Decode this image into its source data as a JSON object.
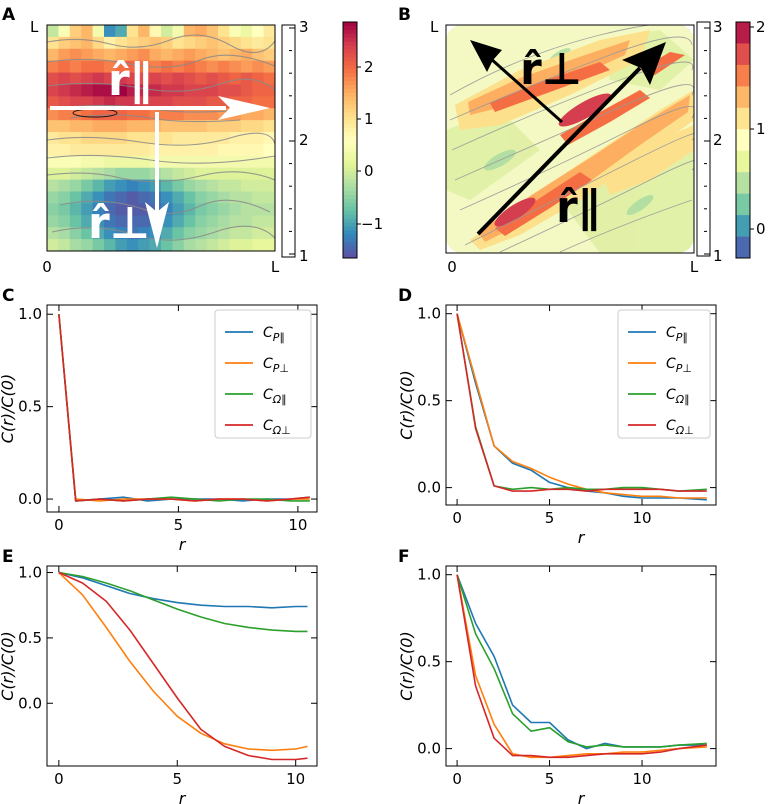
{
  "chart_data": [
    {
      "panel": "A",
      "type": "heatmap",
      "x_tick_labels": [
        "0",
        "L"
      ],
      "y_tick_labels": [
        "L"
      ],
      "arrow_labels": {
        "parallel": "r̂∥",
        "perp": "r̂⊥"
      },
      "rows": [
        [
          -0.2,
          0.4,
          1.1,
          1.3,
          0.3,
          -1.2,
          -1.0,
          0.9,
          1.3,
          0.6,
          -0.1,
          0.3,
          1.3,
          1.4,
          1.2,
          0.9,
          0.4,
          0.2,
          0.5,
          0.8
        ],
        [
          0.9,
          1.1,
          1.2,
          1.3,
          1.0,
          0.7,
          0.9,
          1.0,
          1.1,
          1.2,
          1.1,
          0.9,
          1.0,
          1.1,
          1.2,
          1.1,
          1.0,
          0.9,
          0.8,
          0.9
        ],
        [
          1.3,
          1.5,
          1.6,
          1.5,
          1.4,
          1.3,
          1.4,
          1.5,
          1.6,
          1.4,
          1.3,
          1.4,
          1.5,
          1.4,
          1.3,
          1.2,
          1.3,
          1.4,
          1.2,
          1.1
        ],
        [
          1.7,
          1.8,
          1.7,
          1.8,
          1.8,
          1.7,
          1.8,
          1.9,
          1.8,
          1.7,
          1.8,
          1.7,
          1.8,
          1.7,
          1.6,
          1.7,
          1.6,
          1.5,
          1.6,
          1.5
        ],
        [
          2.1,
          2.2,
          2.1,
          2.2,
          2.3,
          2.2,
          2.3,
          2.2,
          2.1,
          2.2,
          2.1,
          2.2,
          2.1,
          2.0,
          2.1,
          2.0,
          1.9,
          2.0,
          1.9,
          1.8
        ],
        [
          2.2,
          2.3,
          2.4,
          2.5,
          2.6,
          2.6,
          2.7,
          2.5,
          2.4,
          2.4,
          2.3,
          2.3,
          2.2,
          2.2,
          2.2,
          2.1,
          2.1,
          2.0,
          1.9,
          1.9
        ],
        [
          2.0,
          2.1,
          2.2,
          2.2,
          2.3,
          2.4,
          2.3,
          2.3,
          2.2,
          2.2,
          2.2,
          2.1,
          2.1,
          2.1,
          2.0,
          2.0,
          1.9,
          1.9,
          1.8,
          1.8
        ],
        [
          1.6,
          1.7,
          1.7,
          1.8,
          1.9,
          1.9,
          1.9,
          1.8,
          1.8,
          1.7,
          1.7,
          1.7,
          1.6,
          1.6,
          1.6,
          1.5,
          1.5,
          1.4,
          1.4,
          1.3
        ],
        [
          1.2,
          1.2,
          1.3,
          1.3,
          1.4,
          1.4,
          1.4,
          1.3,
          1.3,
          1.3,
          1.2,
          1.2,
          1.2,
          1.2,
          1.1,
          1.1,
          1.1,
          1.0,
          1.0,
          0.9
        ],
        [
          0.8,
          0.9,
          0.9,
          1.0,
          1.0,
          1.0,
          1.0,
          0.9,
          0.9,
          0.9,
          0.9,
          0.8,
          0.8,
          0.8,
          0.8,
          0.8,
          0.7,
          0.7,
          0.7,
          0.6
        ],
        [
          0.7,
          0.7,
          0.8,
          0.8,
          0.8,
          0.8,
          0.8,
          0.8,
          0.8,
          0.7,
          0.7,
          0.7,
          0.7,
          0.7,
          0.7,
          0.6,
          0.6,
          0.6,
          0.6,
          0.5
        ],
        [
          0.4,
          0.4,
          0.4,
          0.3,
          0.3,
          0.2,
          0.2,
          0.2,
          0.2,
          0.3,
          0.3,
          0.3,
          0.3,
          0.3,
          0.3,
          0.3,
          0.3,
          0.3,
          0.3,
          0.3
        ],
        [
          0.0,
          0.0,
          -0.1,
          -0.2,
          -0.3,
          -0.4,
          -0.5,
          -0.5,
          -0.5,
          -0.4,
          -0.3,
          -0.2,
          -0.1,
          0.0,
          0.0,
          0.0,
          0.0,
          0.0,
          0.0,
          0.0
        ],
        [
          -0.3,
          -0.4,
          -0.5,
          -0.7,
          -0.9,
          -1.1,
          -1.2,
          -1.3,
          -1.2,
          -1.1,
          -0.9,
          -0.7,
          -0.5,
          -0.4,
          -0.3,
          -0.2,
          -0.2,
          -0.1,
          -0.1,
          -0.1
        ],
        [
          -0.5,
          -0.6,
          -0.8,
          -1.0,
          -1.2,
          -1.4,
          -1.5,
          -1.6,
          -1.5,
          -1.4,
          -1.2,
          -1.0,
          -0.8,
          -0.6,
          -0.5,
          -0.4,
          -0.3,
          -0.3,
          -0.2,
          -0.2
        ],
        [
          -0.6,
          -0.7,
          -0.9,
          -1.1,
          -1.3,
          -1.5,
          -1.6,
          -1.6,
          -1.6,
          -1.5,
          -1.3,
          -1.1,
          -0.9,
          -0.7,
          -0.6,
          -0.5,
          -0.4,
          -0.3,
          -0.3,
          -0.3
        ],
        [
          -0.5,
          -0.6,
          -0.8,
          -1.0,
          -1.2,
          -1.4,
          -1.5,
          -1.5,
          -1.5,
          -1.4,
          -1.2,
          -1.0,
          -0.8,
          -0.6,
          -0.5,
          -0.4,
          -0.3,
          -0.3,
          -0.2,
          -0.2
        ],
        [
          -0.3,
          -0.4,
          -0.6,
          -0.8,
          -1.0,
          -1.2,
          -1.3,
          -1.4,
          -1.3,
          -1.2,
          -1.0,
          -0.8,
          -0.6,
          -0.5,
          -0.4,
          -0.3,
          -0.2,
          -0.2,
          -0.1,
          -0.1
        ],
        [
          -0.1,
          -0.2,
          -0.4,
          -0.5,
          -0.7,
          -0.9,
          -1.1,
          -1.2,
          -1.1,
          -1.0,
          -0.8,
          -0.6,
          -0.4,
          -0.3,
          -0.2,
          -0.1,
          0.0,
          0.0,
          0.1,
          0.1
        ]
      ],
      "colorbar": {
        "ticks": [
          "2",
          "1",
          "0",
          "−1"
        ],
        "range": [
          -1.7,
          2.7
        ]
      },
      "count_bar": {
        "ticks": [
          "3",
          "2",
          "1"
        ]
      }
    },
    {
      "panel": "B",
      "type": "contour",
      "x_tick_labels": [
        "0",
        "L"
      ],
      "y_tick_labels": [
        "L"
      ],
      "arrow_labels": {
        "parallel": "r̂∥",
        "perp": "r̂⊥"
      },
      "colorbar": {
        "ticks": [
          "2",
          "1",
          "0"
        ],
        "range": [
          -0.3,
          2.0
        ]
      },
      "count_bar": {
        "ticks": [
          "3",
          "2",
          "1"
        ]
      }
    },
    {
      "panel": "C",
      "type": "line",
      "xlabel": "r",
      "ylabel": "C(r)/C(0)",
      "xlim": [
        -0.5,
        10.8
      ],
      "ylim": [
        -0.07,
        1.05
      ],
      "xticks": [
        0,
        5,
        10
      ],
      "yticks": [
        0.0,
        0.5,
        1.0
      ],
      "legend": "top-right",
      "series": [
        {
          "name": "CP∥",
          "main": "C",
          "sub": "P∥",
          "color": "#1f77b4",
          "x": [
            0,
            0.7,
            1.7,
            2.7,
            3.7,
            4.7,
            5.7,
            6.7,
            7.7,
            8.7,
            9.7,
            10.5
          ],
          "y": [
            1.0,
            -0.01,
            0.0,
            0.01,
            -0.01,
            0.0,
            0.0,
            0.0,
            -0.01,
            0.0,
            0.0,
            0.01
          ]
        },
        {
          "name": "CP⊥",
          "main": "C",
          "sub": "P⊥",
          "color": "#ff7f0e",
          "x": [
            0,
            0.7,
            1.7,
            2.7,
            3.7,
            4.7,
            5.7,
            6.7,
            7.7,
            8.7,
            9.7,
            10.5
          ],
          "y": [
            1.0,
            0.0,
            -0.01,
            0.0,
            0.0,
            0.0,
            -0.01,
            0.0,
            0.0,
            -0.01,
            0.0,
            0.0
          ]
        },
        {
          "name": "CΩ∥",
          "main": "C",
          "sub": "Ω∥",
          "color": "#2ca02c",
          "x": [
            0,
            0.7,
            1.7,
            2.7,
            3.7,
            4.7,
            5.7,
            6.7,
            7.7,
            8.7,
            9.7,
            10.5
          ],
          "y": [
            1.0,
            -0.01,
            0.0,
            -0.01,
            0.0,
            0.01,
            0.0,
            -0.01,
            0.0,
            0.0,
            -0.01,
            -0.01
          ]
        },
        {
          "name": "CΩ⊥",
          "main": "C",
          "sub": "Ω⊥",
          "color": "#d62728",
          "x": [
            0,
            0.7,
            1.7,
            2.7,
            3.7,
            4.7,
            5.7,
            6.7,
            7.7,
            8.7,
            9.7,
            10.5
          ],
          "y": [
            1.0,
            -0.01,
            0.0,
            -0.01,
            0.0,
            0.0,
            -0.01,
            0.0,
            0.0,
            -0.01,
            0.0,
            0.01
          ]
        }
      ]
    },
    {
      "panel": "D",
      "type": "line",
      "xlabel": "r",
      "ylabel": "C(r)/C(0)",
      "xlim": [
        -0.6,
        14.0
      ],
      "ylim": [
        -0.1,
        1.05
      ],
      "xticks": [
        0,
        5,
        10
      ],
      "yticks": [
        0.0,
        0.5,
        1.0
      ],
      "legend": "top-right",
      "series": [
        {
          "name": "CP∥",
          "main": "C",
          "sub": "P∥",
          "color": "#1f77b4",
          "x": [
            0,
            1,
            2,
            3,
            4,
            5,
            6,
            7,
            8,
            9,
            10,
            11,
            12,
            13.5
          ],
          "y": [
            1.0,
            0.6,
            0.24,
            0.14,
            0.1,
            0.03,
            0.0,
            -0.02,
            -0.03,
            -0.05,
            -0.06,
            -0.06,
            -0.06,
            -0.07
          ]
        },
        {
          "name": "CP⊥",
          "main": "C",
          "sub": "P⊥",
          "color": "#ff7f0e",
          "x": [
            0,
            1,
            2,
            3,
            4,
            5,
            6,
            7,
            8,
            9,
            10,
            11,
            12,
            13.5
          ],
          "y": [
            1.0,
            0.62,
            0.24,
            0.15,
            0.11,
            0.06,
            0.02,
            -0.01,
            -0.03,
            -0.04,
            -0.05,
            -0.05,
            -0.06,
            -0.06
          ]
        },
        {
          "name": "CΩ∥",
          "main": "C",
          "sub": "Ω∥",
          "color": "#2ca02c",
          "x": [
            0,
            1,
            2,
            3,
            4,
            5,
            6,
            7,
            8,
            9,
            10,
            11,
            12,
            13.5
          ],
          "y": [
            1.0,
            0.35,
            0.01,
            -0.01,
            0.0,
            -0.01,
            0.0,
            -0.01,
            -0.01,
            0.0,
            0.0,
            -0.01,
            -0.02,
            -0.01
          ]
        },
        {
          "name": "CΩ⊥",
          "main": "C",
          "sub": "Ω⊥",
          "color": "#d62728",
          "x": [
            0,
            1,
            2,
            3,
            4,
            5,
            6,
            7,
            8,
            9,
            10,
            11,
            12,
            13.5
          ],
          "y": [
            1.0,
            0.34,
            0.01,
            -0.02,
            -0.02,
            -0.01,
            -0.01,
            -0.02,
            -0.01,
            -0.01,
            -0.01,
            -0.01,
            -0.02,
            -0.02
          ]
        }
      ]
    },
    {
      "panel": "E",
      "type": "line",
      "xlabel": "r",
      "ylabel": "C(r)/C(0)",
      "xlim": [
        -0.5,
        10.9
      ],
      "ylim": [
        -0.48,
        1.05
      ],
      "xticks": [
        0,
        5,
        10
      ],
      "yticks": [
        0.0,
        0.5,
        1.0
      ],
      "series": [
        {
          "name": "CP∥",
          "color": "#1f77b4",
          "x": [
            0,
            1,
            2,
            3,
            4,
            5,
            6,
            7,
            8,
            9,
            10,
            10.5
          ],
          "y": [
            1.0,
            0.96,
            0.9,
            0.84,
            0.8,
            0.77,
            0.75,
            0.74,
            0.74,
            0.73,
            0.74,
            0.74
          ]
        },
        {
          "name": "CP⊥",
          "color": "#ff7f0e",
          "x": [
            0,
            1,
            2,
            3,
            4,
            5,
            6,
            7,
            8,
            9,
            10,
            10.5
          ],
          "y": [
            1.0,
            0.83,
            0.58,
            0.32,
            0.09,
            -0.1,
            -0.23,
            -0.31,
            -0.35,
            -0.36,
            -0.35,
            -0.33
          ]
        },
        {
          "name": "CΩ∥",
          "color": "#2ca02c",
          "x": [
            0,
            1,
            2,
            3,
            4,
            5,
            6,
            7,
            8,
            9,
            10,
            10.5
          ],
          "y": [
            1.0,
            0.97,
            0.92,
            0.86,
            0.79,
            0.72,
            0.66,
            0.61,
            0.58,
            0.56,
            0.55,
            0.55
          ]
        },
        {
          "name": "CΩ⊥",
          "color": "#d62728",
          "x": [
            0,
            1,
            2,
            3,
            4,
            5,
            6,
            7,
            8,
            9,
            10,
            10.5
          ],
          "y": [
            1.0,
            0.92,
            0.78,
            0.56,
            0.3,
            0.04,
            -0.2,
            -0.33,
            -0.4,
            -0.43,
            -0.43,
            -0.42
          ]
        }
      ]
    },
    {
      "panel": "F",
      "type": "line",
      "xlabel": "r",
      "ylabel": "C(r)/C(0)",
      "xlim": [
        -0.6,
        14.0
      ],
      "ylim": [
        -0.1,
        1.05
      ],
      "xticks": [
        0,
        5,
        10
      ],
      "yticks": [
        0.0,
        0.5,
        1.0
      ],
      "series": [
        {
          "name": "CP∥",
          "color": "#1f77b4",
          "x": [
            0,
            1,
            2,
            3,
            4,
            5,
            6,
            7,
            8,
            9,
            10,
            11,
            12,
            13.5
          ],
          "y": [
            1.0,
            0.72,
            0.53,
            0.25,
            0.15,
            0.15,
            0.05,
            0.0,
            0.03,
            0.01,
            0.01,
            0.01,
            0.02,
            0.02
          ]
        },
        {
          "name": "CP⊥",
          "color": "#ff7f0e",
          "x": [
            0,
            1,
            2,
            3,
            4,
            5,
            6,
            7,
            8,
            9,
            10,
            11,
            12,
            13.5
          ],
          "y": [
            1.0,
            0.42,
            0.14,
            -0.03,
            -0.05,
            -0.05,
            -0.04,
            -0.03,
            -0.03,
            -0.02,
            -0.02,
            -0.01,
            0.0,
            0.01
          ]
        },
        {
          "name": "CΩ∥",
          "color": "#2ca02c",
          "x": [
            0,
            1,
            2,
            3,
            4,
            5,
            6,
            7,
            8,
            9,
            10,
            11,
            12,
            13.5
          ],
          "y": [
            1.0,
            0.66,
            0.46,
            0.2,
            0.1,
            0.12,
            0.04,
            0.01,
            0.02,
            0.01,
            0.01,
            0.01,
            0.02,
            0.03
          ]
        },
        {
          "name": "CΩ⊥",
          "color": "#d62728",
          "x": [
            0,
            1,
            2,
            3,
            4,
            5,
            6,
            7,
            8,
            9,
            10,
            11,
            12,
            13.5
          ],
          "y": [
            1.0,
            0.36,
            0.06,
            -0.04,
            -0.04,
            -0.05,
            -0.05,
            -0.04,
            -0.03,
            -0.03,
            -0.03,
            -0.02,
            0.0,
            0.02
          ]
        }
      ]
    }
  ]
}
